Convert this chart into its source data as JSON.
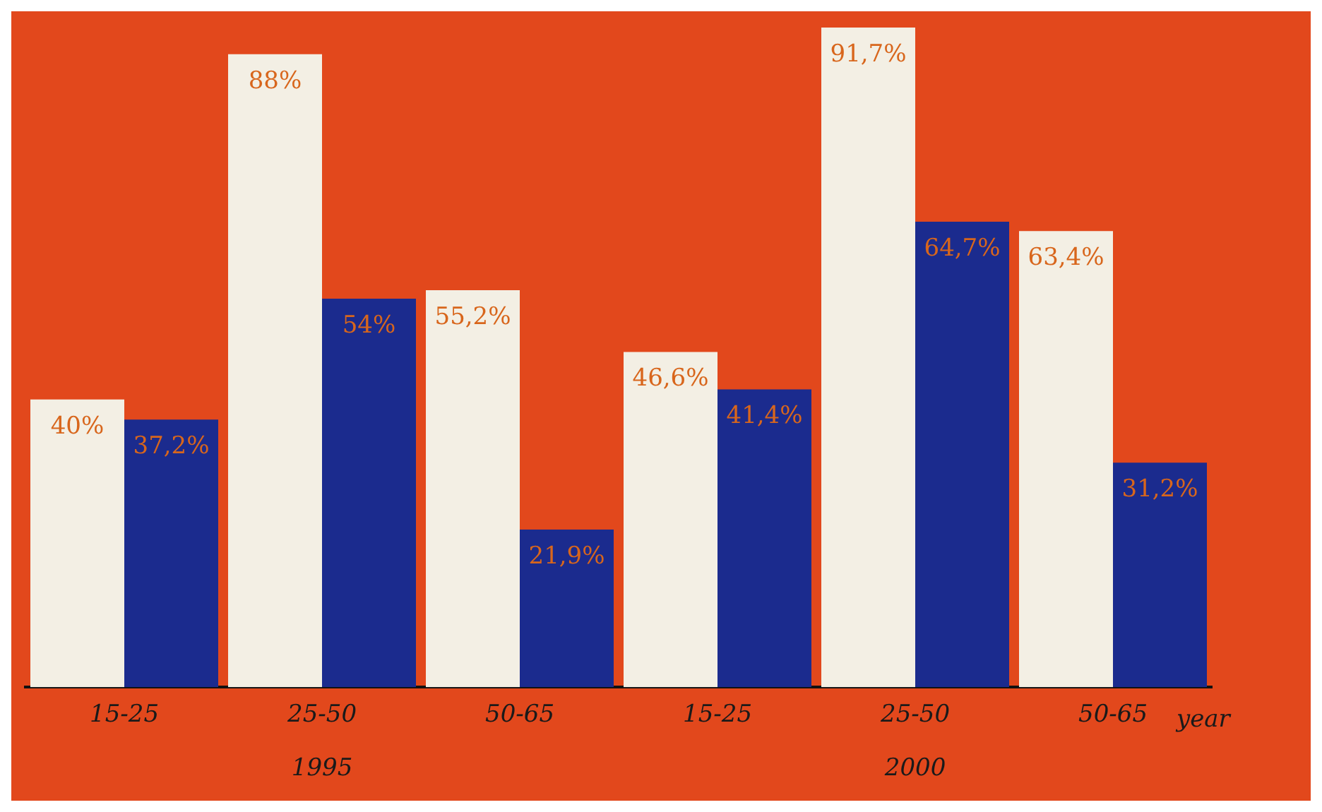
{
  "chart_data": {
    "type": "bar",
    "categories": [
      "15-25",
      "25-50",
      "50-65",
      "15-25",
      "25-50",
      "50-65"
    ],
    "series": [
      {
        "color": "#f3efe4",
        "values": [
          40,
          88,
          55.2,
          46.6,
          91.7,
          63.4
        ],
        "value_labels": [
          "40%",
          "88%",
          "55,2%",
          "46,6%",
          "91,7%",
          "63,4%"
        ]
      },
      {
        "color": "#1b2b8e",
        "values": [
          37.2,
          54,
          21.9,
          41.4,
          64.7,
          31.2
        ],
        "value_labels": [
          "37,2%",
          "54%",
          "21,9%",
          "41,4%",
          "64,7%",
          "31,2%"
        ]
      }
    ],
    "xlabel": "year",
    "annotations": [
      "1995",
      "2000"
    ],
    "ylim": [
      0,
      92
    ],
    "tick_labels": "x",
    "grid": false,
    "legend": false
  }
}
